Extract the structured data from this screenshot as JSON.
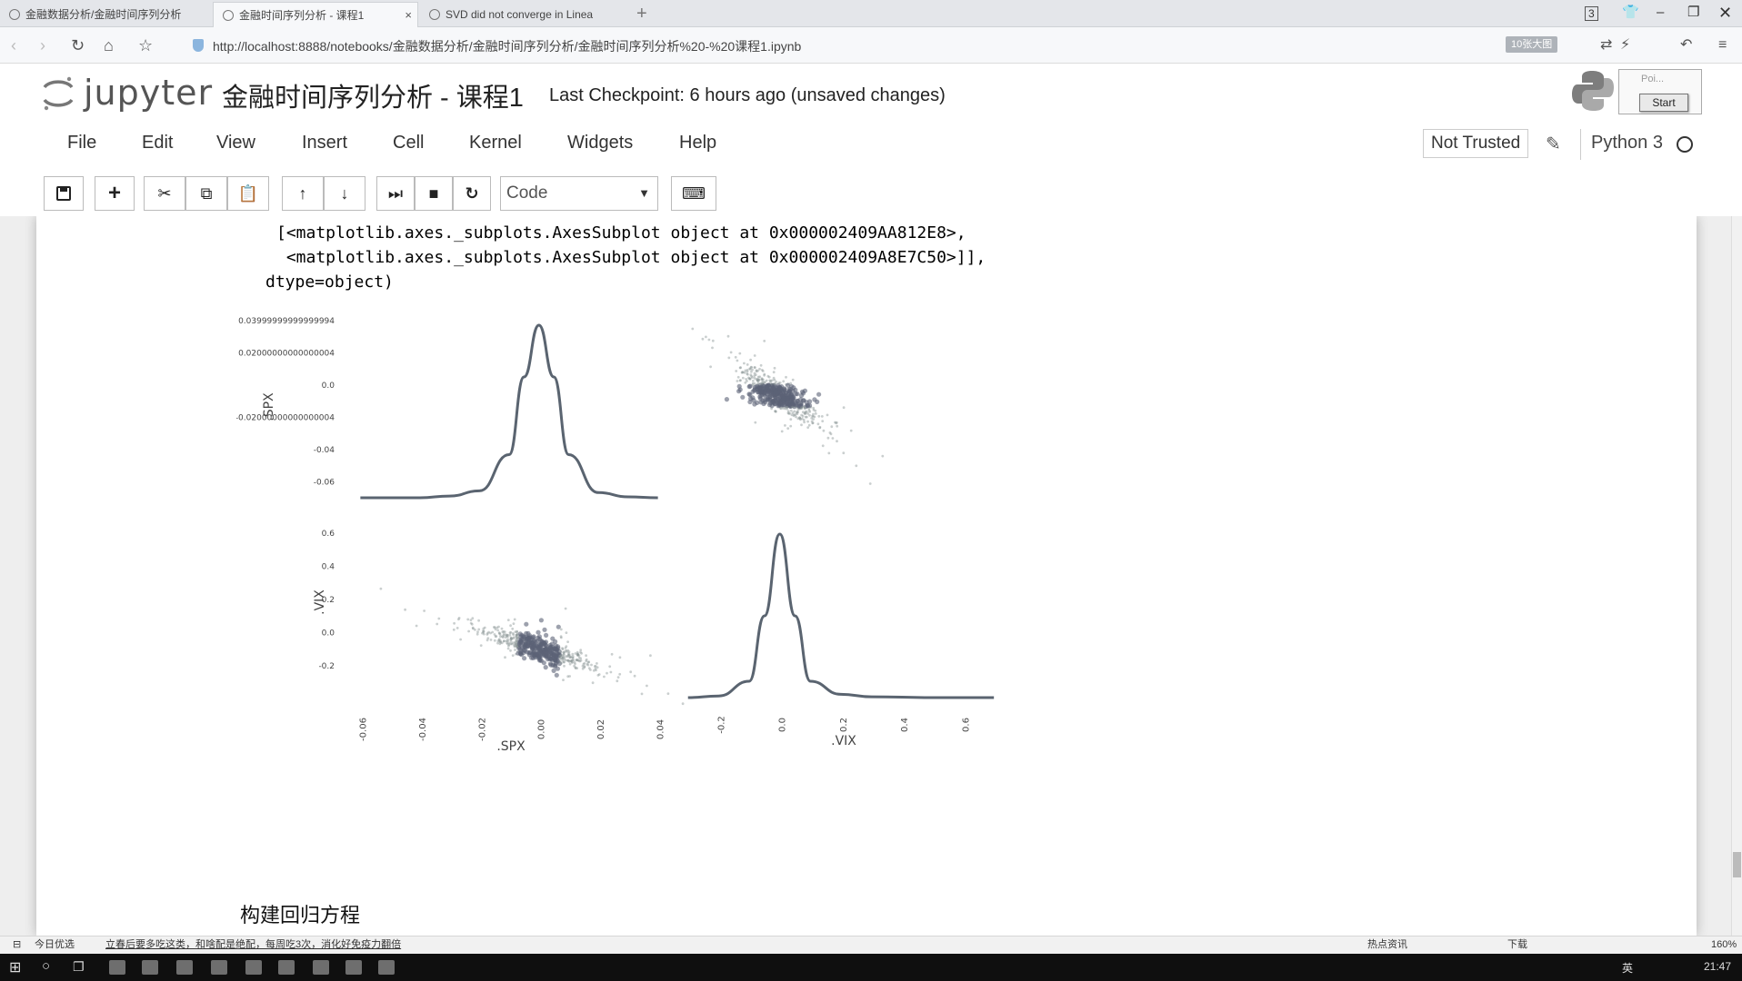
{
  "browser": {
    "tabs": [
      {
        "title": "金融数据分析/金融时间序列分析",
        "active": false
      },
      {
        "title": "金融时间序列分析 - 课程1",
        "active": true
      },
      {
        "title": "SVD did not converge in Linea",
        "active": false
      }
    ],
    "tab_close_glyph": "×",
    "new_tab_glyph": "+",
    "tab_count_badge": "3",
    "url": "http://localhost:8888/notebooks/金融数据分析/金融时间序列分析/金融时间序列分析%20-%20课程1.ipynb",
    "url_pill": "10张大图"
  },
  "jupyter": {
    "logo_text": "jupyter",
    "notebook_title": "金融时间序列分析 - 课程1",
    "checkpoint": "Last Checkpoint: 6 hours ago (unsaved changes)",
    "menu": [
      "File",
      "Edit",
      "View",
      "Insert",
      "Cell",
      "Kernel",
      "Widgets",
      "Help"
    ],
    "trust_label": "Not Trusted",
    "kernel_name": "Python 3",
    "kernel_popup": {
      "label": "Poi...",
      "button": "Start"
    }
  },
  "toolbar": {
    "icons": [
      "save-icon",
      "add-cell-icon",
      "cut-icon",
      "copy-icon",
      "paste-icon",
      "move-up-icon",
      "move-down-icon",
      "run-icon",
      "stop-icon",
      "restart-icon",
      "keyboard-icon"
    ],
    "cell_type": "Code"
  },
  "output": {
    "lines": [
      "[<matplotlib.axes._subplots.AxesSubplot object at 0x000002409AA812E8>,",
      " <matplotlib.axes._subplots.AxesSubplot object at 0x000002409A8E7C50>]],",
      "dtype=object)"
    ]
  },
  "chart_data": {
    "type": "scatter",
    "description_type": "scatter_matrix with kde diagonal",
    "variables": [
      ".SPX",
      ".VIX"
    ],
    "panels": {
      "spx_kde": {
        "x": [
          -0.06,
          -0.04,
          -0.03,
          -0.02,
          -0.01,
          -0.005,
          0.0,
          0.005,
          0.01,
          0.02,
          0.03,
          0.04
        ],
        "y": [
          0.0,
          0.0,
          0.01,
          0.04,
          0.25,
          0.7,
          1.0,
          0.7,
          0.25,
          0.03,
          0.005,
          0.0
        ]
      },
      "vix_kde": {
        "x": [
          -0.3,
          -0.2,
          -0.1,
          -0.05,
          0.0,
          0.05,
          0.1,
          0.2,
          0.3,
          0.5,
          0.7
        ],
        "y": [
          0.0,
          0.01,
          0.1,
          0.5,
          1.0,
          0.5,
          0.1,
          0.02,
          0.005,
          0.0,
          0.0
        ]
      },
      "scatter_correlation": -0.8
    },
    "spx_axis": {
      "label": ".SPX",
      "ticks": [
        -0.06,
        -0.04,
        -0.02,
        0.0,
        0.02,
        0.04
      ],
      "tick_labels": [
        "-0.06",
        "-0.04",
        "-0.02",
        "0.00",
        "0.02",
        "0.04"
      ],
      "ytick_labels": [
        "0.03999999999999994",
        "0.02000000000000004",
        "0.0",
        "-0.02000000000000004",
        "-0.04",
        "-0.06"
      ]
    },
    "vix_axis": {
      "label": ".VIX",
      "ticks": [
        -0.2,
        0.0,
        0.2,
        0.4,
        0.6
      ],
      "tick_labels": [
        "-0.2",
        "0.0",
        "0.2",
        "0.4",
        "0.6"
      ],
      "ytick_labels": [
        "0.6",
        "0.4",
        "0.2",
        "0.0",
        "-0.2"
      ]
    },
    "colors": {
      "line": "#5a6470",
      "points": "#8a9494",
      "dense": "#5b6277"
    }
  },
  "markdown": {
    "heading": "构建回归方程"
  },
  "statusbar": {
    "left": "今日优选",
    "news": "立春后要多吃这类，和啥配是绝配，每周吃3次，消化好免疫力翻倍",
    "right_items": [
      "热点资讯",
      "下载"
    ],
    "zoom": "160%"
  },
  "taskbar": {
    "ime": "英",
    "time": "21:47"
  }
}
